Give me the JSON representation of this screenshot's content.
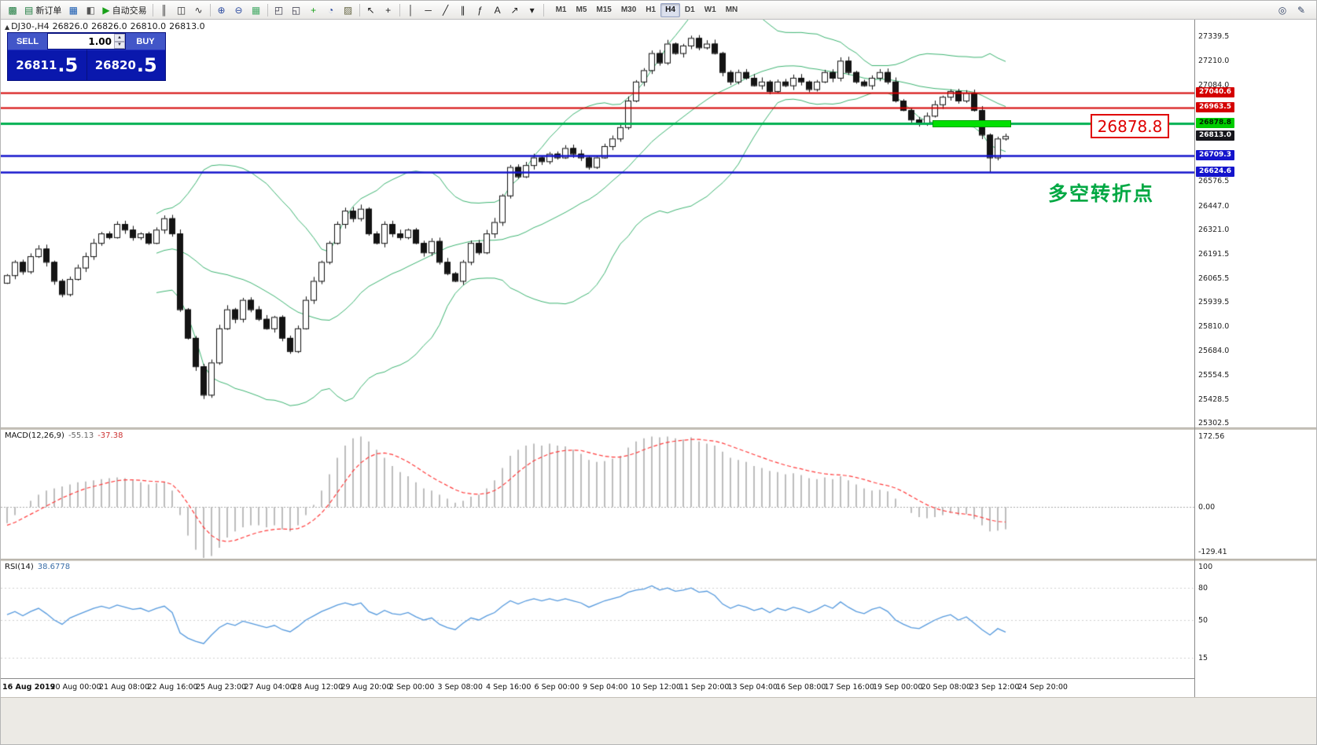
{
  "toolbar": {
    "new_order_label": "新订单",
    "auto_trading_label": "自动交易",
    "items": [
      {
        "name": "new-chart-icon-button",
        "glyph": "▩",
        "color": "#1b7a3d"
      },
      {
        "name": "new-order-button",
        "glyph": "▤",
        "color": "#1b7a3d",
        "label": "新订单"
      },
      {
        "name": "market-watch-icon-button",
        "glyph": "▦",
        "color": "#1558b0"
      },
      {
        "name": "data-window-icon-button",
        "glyph": "◧",
        "color": "#555555"
      },
      {
        "name": "auto-trading-button",
        "glyph": "▶",
        "color": "#18a018",
        "label": "自动交易"
      },
      {
        "sep": true
      },
      {
        "name": "bar-chart-button",
        "glyph": "║",
        "color": "#333333"
      },
      {
        "name": "candlestick-chart-button",
        "glyph": "◫",
        "color": "#333333"
      },
      {
        "name": "line-chart-button",
        "glyph": "∿",
        "color": "#333333"
      },
      {
        "sep": true
      },
      {
        "name": "zoom-in-button",
        "glyph": "⊕",
        "color": "#2c4ba0"
      },
      {
        "name": "zoom-out-button",
        "glyph": "⊖",
        "color": "#2c4ba0"
      },
      {
        "name": "grid-button",
        "glyph": "▦",
        "color": "#44aa66"
      },
      {
        "sep": true
      },
      {
        "name": "tile-windows-button",
        "glyph": "◰",
        "color": "#333344"
      },
      {
        "name": "cascade-windows-button",
        "glyph": "◱",
        "color": "#333344"
      },
      {
        "name": "add-indicator-button",
        "glyph": "+",
        "color": "#18a018"
      },
      {
        "name": "period-button",
        "glyph": "◔",
        "color": "#2c4ba0"
      },
      {
        "name": "template-button",
        "glyph": "▨",
        "color": "#666644"
      },
      {
        "sep": true
      },
      {
        "name": "cursor-button",
        "glyph": "↖",
        "color": "#222222"
      },
      {
        "name": "crosshair-button",
        "glyph": "+",
        "color": "#222222"
      },
      {
        "sep": true
      },
      {
        "name": "vertical-line-button",
        "glyph": "│",
        "color": "#222222"
      },
      {
        "name": "horizontal-line-button",
        "glyph": "─",
        "color": "#222222"
      },
      {
        "name": "trendline-button",
        "glyph": "╱",
        "color": "#222222"
      },
      {
        "name": "channel-button",
        "glyph": "∥",
        "color": "#222222"
      },
      {
        "name": "fibonacci-button",
        "glyph": "ƒ",
        "color": "#222222"
      },
      {
        "name": "text-button",
        "glyph": "A",
        "color": "#222222"
      },
      {
        "name": "arrows-button",
        "glyph": "↗",
        "color": "#222222"
      },
      {
        "name": "shapes-dropdown-button",
        "glyph": "▾",
        "color": "#222222"
      },
      {
        "sep": true
      }
    ],
    "timeframes": [
      "M1",
      "M5",
      "M15",
      "M30",
      "H1",
      "H4",
      "D1",
      "W1",
      "MN"
    ],
    "active_timeframe": "H4",
    "right_items": [
      {
        "name": "search-button",
        "glyph": "◎",
        "color": "#334466"
      },
      {
        "name": "edit-button",
        "glyph": "✎",
        "color": "#334466"
      }
    ]
  },
  "chart_header": {
    "marker": "▲",
    "symbol_period": "DJ30-,H4",
    "open": "26826.0",
    "high": "26826.0",
    "low": "26810.0",
    "close": "26813.0"
  },
  "trade_panel": {
    "sell_label": "SELL",
    "buy_label": "BUY",
    "volume": "1.00",
    "volume_up_icon": "▲",
    "volume_down_icon": "▼",
    "sell_price_main": "26811",
    "sell_price_frac": ".5",
    "buy_price_main": "26820",
    "buy_price_frac": ".5"
  },
  "annotations": {
    "callout_price": "26878.8",
    "note_text": "多空转折点",
    "note_color": "#00a843",
    "zone_price": 26878.8
  },
  "levels": [
    {
      "price": 27040.6,
      "color": "#d40000",
      "width": 2
    },
    {
      "price": 26963.5,
      "color": "#d40000",
      "width": 2
    },
    {
      "price": 26878.8,
      "color": "#00b050",
      "width": 3
    },
    {
      "price": 26709.3,
      "color": "#1414cc",
      "width": 2.5
    },
    {
      "price": 26624.6,
      "color": "#1414cc",
      "width": 2.5
    }
  ],
  "price_axis": {
    "ticks": [
      27339.5,
      27210.0,
      27084.0,
      26576.5,
      26447.0,
      26321.0,
      26191.5,
      26065.5,
      25939.5,
      25810.0,
      25684.0,
      25554.5,
      25428.5,
      25302.5
    ],
    "badges": [
      {
        "value": "27040.6",
        "bg": "#d40000",
        "fg": "#ffffff"
      },
      {
        "value": "26963.5",
        "bg": "#d40000",
        "fg": "#ffffff"
      },
      {
        "value": "26878.8",
        "bg": "#00cc00",
        "fg": "#002200"
      },
      {
        "value": "26813.0",
        "bg": "#16161c",
        "fg": "#ffffff"
      },
      {
        "value": "26709.3",
        "bg": "#1414cc",
        "fg": "#ffffff"
      },
      {
        "value": "26624.6",
        "bg": "#1414cc",
        "fg": "#ffffff"
      }
    ]
  },
  "time_axis": {
    "labels": [
      "16 Aug 2019",
      "20 Aug 00:00",
      "21 Aug 08:00",
      "22 Aug 16:00",
      "25 Aug 23:00",
      "27 Aug 04:00",
      "28 Aug 12:00",
      "29 Aug 20:00",
      "2 Sep 00:00",
      "3 Sep 08:00",
      "4 Sep 16:00",
      "6 Sep 00:00",
      "9 Sep 04:00",
      "10 Sep 12:00",
      "11 Sep 20:00",
      "13 Sep 04:00",
      "16 Sep 08:00",
      "17 Sep 16:00",
      "19 Sep 00:00",
      "20 Sep 08:00",
      "23 Sep 12:00",
      "24 Sep 20:00"
    ]
  },
  "macd": {
    "label": "MACD(12,26,9)",
    "value_main": "-55.13",
    "value_signal": "-37.38",
    "ticks": [
      "172.56",
      "0.00",
      "-129.41"
    ],
    "histogram": [
      -40,
      -20,
      0,
      15,
      30,
      40,
      45,
      50,
      55,
      60,
      62,
      65,
      68,
      70,
      72,
      70,
      65,
      60,
      55,
      58,
      60,
      40,
      -20,
      -70,
      -105,
      -125,
      -120,
      -100,
      -75,
      -60,
      -50,
      -45,
      -45,
      -50,
      -45,
      -55,
      -60,
      -45,
      -20,
      5,
      40,
      80,
      120,
      150,
      168,
      172,
      160,
      140,
      120,
      100,
      85,
      75,
      60,
      45,
      40,
      30,
      20,
      10,
      15,
      25,
      30,
      45,
      65,
      95,
      125,
      140,
      150,
      155,
      150,
      155,
      150,
      148,
      140,
      130,
      115,
      110,
      112,
      118,
      125,
      145,
      160,
      168,
      172,
      170,
      172,
      168,
      165,
      170,
      160,
      155,
      150,
      135,
      120,
      115,
      110,
      100,
      95,
      88,
      85,
      80,
      82,
      78,
      70,
      68,
      72,
      68,
      75,
      65,
      55,
      45,
      40,
      42,
      38,
      20,
      0,
      -15,
      -25,
      -28,
      -25,
      -20,
      -15,
      -20,
      -18,
      -30,
      -45,
      -60,
      -58,
      -55
    ],
    "signal": [
      -45,
      -38,
      -28,
      -18,
      -8,
      2,
      12,
      22,
      30,
      38,
      45,
      50,
      55,
      60,
      64,
      66,
      66,
      65,
      63,
      62,
      61,
      55,
      35,
      8,
      -22,
      -50,
      -70,
      -82,
      -85,
      -82,
      -75,
      -68,
      -62,
      -58,
      -55,
      -54,
      -55,
      -53,
      -45,
      -32,
      -15,
      8,
      35,
      62,
      88,
      108,
      122,
      130,
      132,
      128,
      120,
      110,
      98,
      85,
      73,
      62,
      52,
      42,
      35,
      32,
      31,
      33,
      40,
      52,
      68,
      85,
      100,
      113,
      122,
      130,
      135,
      138,
      139,
      138,
      133,
      128,
      124,
      122,
      122,
      126,
      132,
      140,
      147,
      153,
      158,
      161,
      163,
      165,
      165,
      163,
      161,
      156,
      149,
      142,
      135,
      128,
      121,
      114,
      108,
      102,
      97,
      93,
      88,
      84,
      81,
      79,
      78,
      76,
      72,
      67,
      61,
      56,
      52,
      46,
      37,
      26,
      15,
      5,
      -3,
      -9,
      -13,
      -16,
      -18,
      -21,
      -26,
      -32,
      -36,
      -37
    ]
  },
  "rsi": {
    "label": "RSI(14)",
    "value": "38.6778",
    "ticks": [
      "100",
      "80",
      "50",
      "15"
    ],
    "levels": [
      80,
      50,
      15
    ],
    "values": [
      55,
      58,
      54,
      58,
      61,
      56,
      50,
      46,
      52,
      55,
      58,
      61,
      63,
      61,
      64,
      62,
      60,
      61,
      58,
      61,
      63,
      57,
      38,
      33,
      30,
      28,
      36,
      43,
      47,
      45,
      49,
      47,
      45,
      43,
      45,
      41,
      39,
      44,
      50,
      54,
      58,
      61,
      64,
      66,
      64,
      66,
      58,
      55,
      59,
      56,
      55,
      57,
      53,
      50,
      52,
      46,
      43,
      41,
      47,
      52,
      50,
      54,
      57,
      63,
      68,
      65,
      68,
      70,
      68,
      70,
      68,
      70,
      68,
      66,
      62,
      65,
      68,
      70,
      72,
      76,
      78,
      79,
      82,
      78,
      80,
      77,
      78,
      80,
      76,
      77,
      73,
      65,
      61,
      64,
      62,
      59,
      61,
      57,
      61,
      59,
      62,
      60,
      57,
      60,
      64,
      61,
      67,
      62,
      58,
      56,
      60,
      62,
      58,
      50,
      46,
      43,
      42,
      46,
      50,
      53,
      55,
      50,
      53,
      47,
      41,
      36,
      42,
      38.7
    ]
  },
  "chart_data": {
    "type": "candlestick",
    "symbol": "DJ30",
    "period": "H4",
    "visible_price_range": [
      25302.5,
      27339.5
    ],
    "closes": [
      26080,
      26150,
      26100,
      26180,
      26220,
      26150,
      26050,
      25980,
      26060,
      26120,
      26180,
      26250,
      26300,
      26280,
      26350,
      26320,
      26280,
      26300,
      26250,
      26320,
      26380,
      26300,
      25900,
      25750,
      25600,
      25450,
      25620,
      25800,
      25900,
      25850,
      25950,
      25900,
      25850,
      25800,
      25860,
      25750,
      25680,
      25800,
      25950,
      26050,
      26150,
      26250,
      26350,
      26420,
      26380,
      26430,
      26300,
      26250,
      26350,
      26300,
      26280,
      26320,
      26250,
      26200,
      26260,
      26150,
      26090,
      26050,
      26150,
      26250,
      26200,
      26300,
      26360,
      26500,
      26650,
      26600,
      26660,
      26700,
      26680,
      26720,
      26700,
      26750,
      26720,
      26700,
      26650,
      26700,
      26760,
      26800,
      26860,
      27000,
      27100,
      27160,
      27250,
      27200,
      27300,
      27250,
      27290,
      27330,
      27280,
      27300,
      27250,
      27150,
      27100,
      27150,
      27120,
      27080,
      27100,
      27050,
      27100,
      27080,
      27120,
      27100,
      27060,
      27100,
      27150,
      27120,
      27210,
      27150,
      27100,
      27080,
      27120,
      27150,
      27100,
      27000,
      26950,
      26900,
      26880,
      26920,
      26980,
      27020,
      27050,
      27000,
      27040,
      26950,
      26820,
      26700,
      26800,
      26813
    ],
    "wick_overrides": {
      "25": {
        "low": 25428
      },
      "87": {
        "high": 27342
      },
      "125": {
        "low": 26620
      }
    }
  },
  "colors": {
    "bollinger": "#3CB371",
    "candle_up": "#ffffff",
    "candle_down": "#141414",
    "macd_hist": "#bdbdbd",
    "macd_signal": "#ff3b3b",
    "rsi_line": "#5599dd"
  }
}
